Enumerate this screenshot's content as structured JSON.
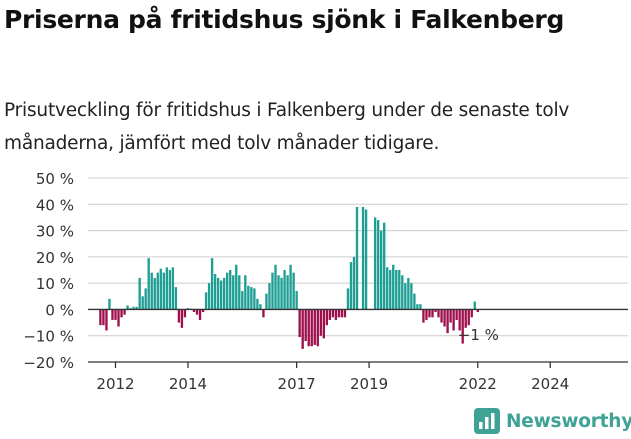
{
  "chart_data": {
    "type": "bar",
    "title": "Priserna på fritidshus sjönk i Falkenberg",
    "subtitle": "Prisutveckling för fritidshus i Falkenberg under de senaste tolv månaderna, jämfört med tolv månader tidigare.",
    "xlabel": "",
    "ylabel": "",
    "ylim": [
      -20,
      50
    ],
    "yticks": [
      50,
      40,
      30,
      20,
      10,
      0,
      -10,
      -20
    ],
    "ytick_labels": [
      "50 %",
      "40 %",
      "30 %",
      "20 %",
      "10 %",
      "0 %",
      "−10 %",
      "−20 %"
    ],
    "xticks": [
      2012,
      2014,
      2017,
      2019,
      2022,
      2024
    ],
    "grid": true,
    "colors": {
      "positive": "#1f9e94",
      "negative": "#9e0f4c",
      "grid": "#cccccc",
      "axis": "#333333"
    },
    "annotation": "−1 %",
    "series": [
      {
        "start": "2011-08",
        "interval": "month",
        "values": [
          -6,
          -6,
          -8,
          4,
          -4,
          -4,
          -6.5,
          -3,
          -2,
          1.5,
          0.5,
          1,
          1,
          12,
          5,
          8,
          19.5,
          14,
          12,
          14,
          15.5,
          14,
          16,
          15,
          16,
          8.5,
          -5,
          -7,
          -3,
          0.5,
          0.3,
          -1,
          -2,
          -4,
          -1,
          6.5,
          10,
          19.5,
          13.5,
          12,
          11,
          12,
          14,
          15,
          13,
          17,
          13,
          7,
          13,
          9,
          8.5,
          8,
          4,
          2,
          -3,
          6,
          10,
          14,
          17,
          13,
          12,
          15,
          13,
          17,
          14,
          7,
          -10.5,
          -15,
          -12,
          -14,
          -14,
          -13.5,
          -14,
          -10,
          -11,
          -6,
          -4,
          -3,
          -4,
          -3,
          -3,
          -3,
          8,
          18,
          20,
          39,
          0,
          39,
          38,
          0,
          0,
          35,
          34,
          30,
          33,
          16,
          15,
          17,
          15,
          15,
          13,
          10,
          12,
          10,
          6,
          2,
          2,
          -5,
          -4,
          -3,
          -3,
          -1,
          -3,
          -5,
          -6.5,
          -9,
          -5,
          -8,
          -4,
          -8,
          -13,
          -7,
          -6,
          -3,
          3,
          -1
        ]
      }
    ]
  },
  "brand": {
    "name": "Newsworthy",
    "icon": "newsworthy-logo-icon"
  }
}
